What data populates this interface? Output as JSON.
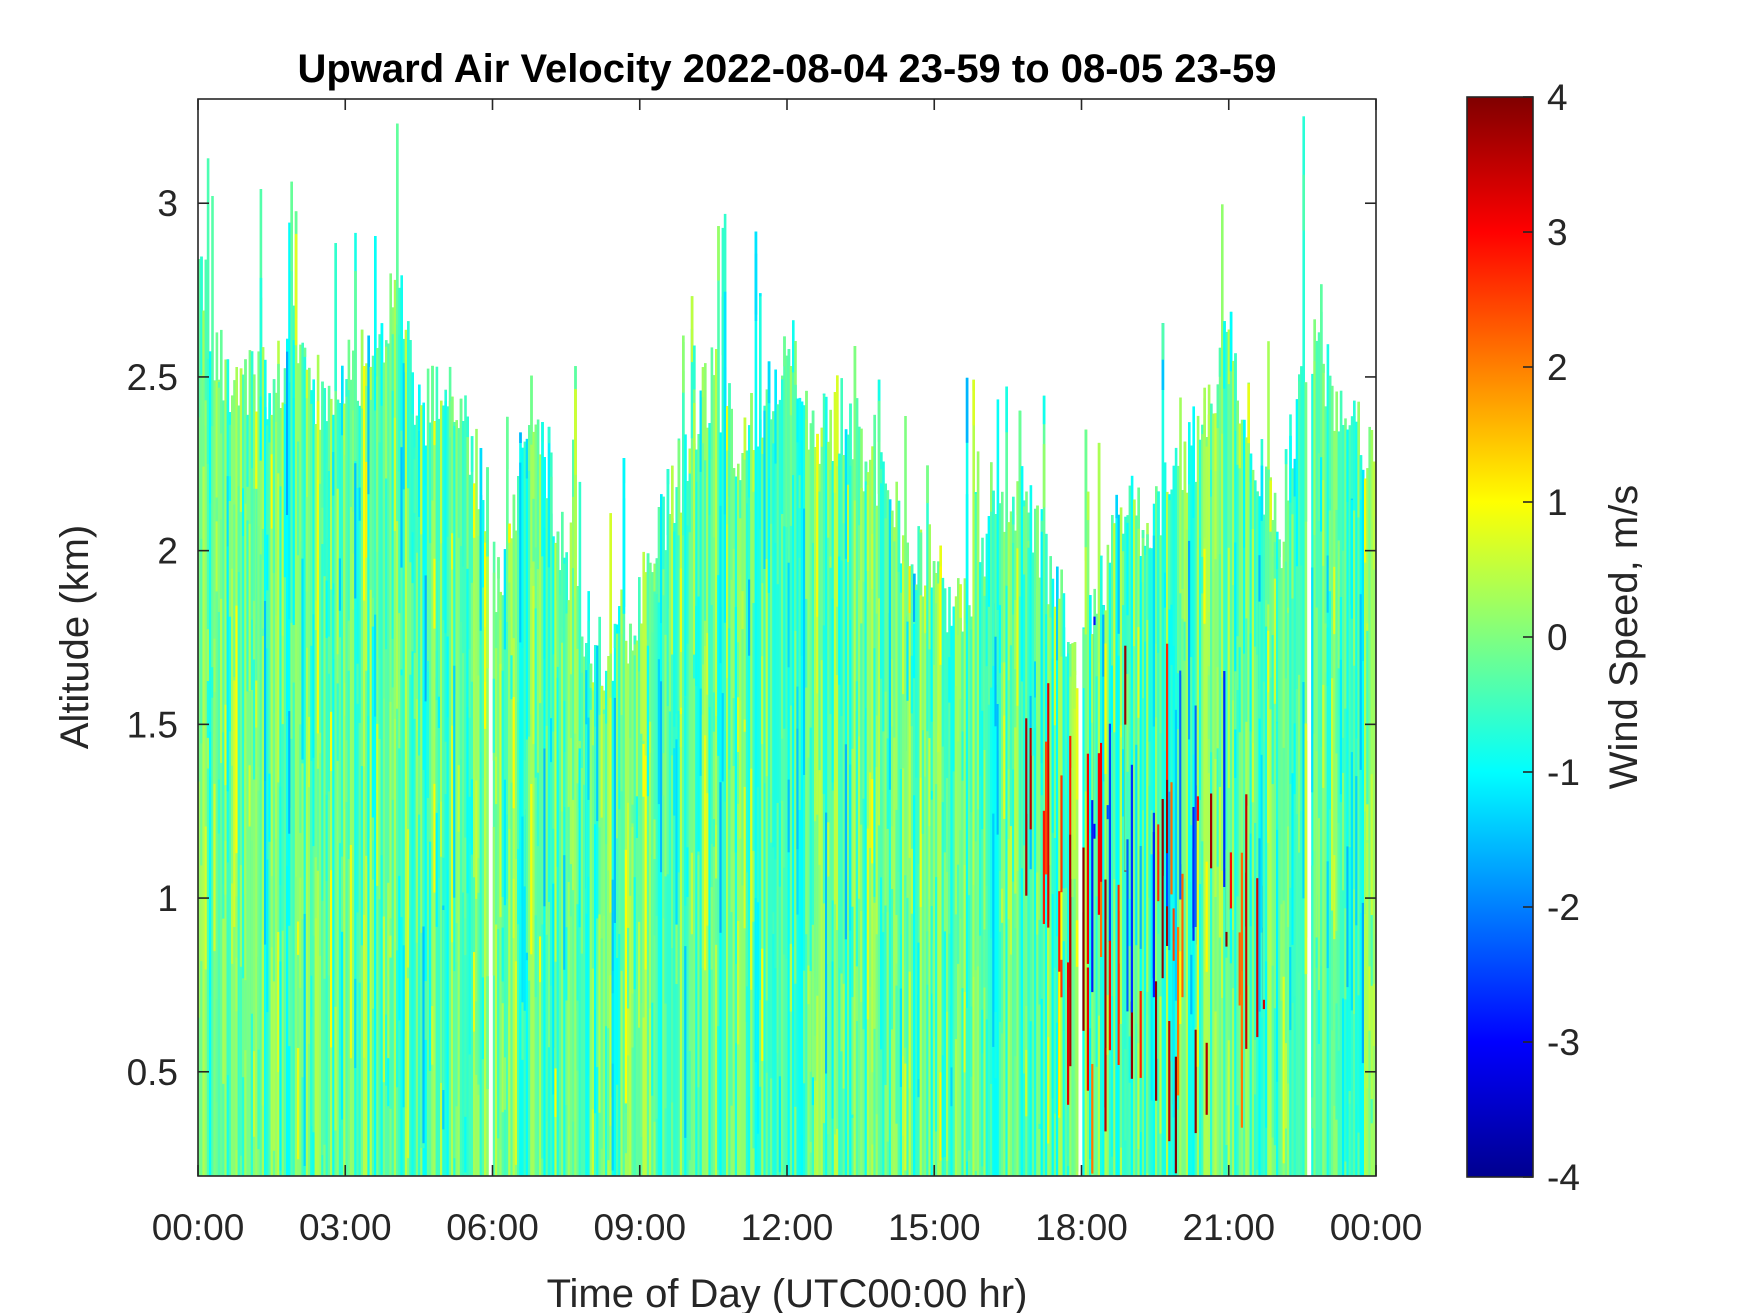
{
  "chart_data": {
    "type": "heatmap",
    "title": "Upward Air Velocity 2022-08-04 23-59 to 08-05 23-59",
    "xlabel": "Time of Day (UTC00:00 hr)",
    "ylabel": "Altitude (km)",
    "colorbar_label": "Wind Speed, m/s",
    "x_tick_labels": [
      "00:00",
      "03:00",
      "06:00",
      "09:00",
      "12:00",
      "15:00",
      "18:00",
      "21:00",
      "00:00"
    ],
    "x_tick_hours": [
      0,
      3,
      6,
      9,
      12,
      15,
      18,
      21,
      24
    ],
    "xlim_hours": [
      0,
      24
    ],
    "y_tick_labels": [
      "0.5",
      "1",
      "1.5",
      "2",
      "2.5",
      "3"
    ],
    "y_ticks": [
      0.5,
      1,
      1.5,
      2,
      2.5,
      3
    ],
    "ylim": [
      0.2,
      3.3
    ],
    "colorbar_ticks": [
      4,
      3,
      2,
      1,
      0,
      -1,
      -2,
      -3,
      -4
    ],
    "clim": [
      -4,
      4
    ],
    "colormap": "jet",
    "grid": false,
    "cloud_top_km": [
      [
        0.0,
        2.8
      ],
      [
        0.5,
        2.5
      ],
      [
        1.0,
        2.5
      ],
      [
        1.5,
        2.5
      ],
      [
        2.0,
        2.5
      ],
      [
        2.5,
        2.45
      ],
      [
        3.0,
        2.55
      ],
      [
        3.5,
        2.5
      ],
      [
        4.0,
        2.8
      ],
      [
        4.5,
        2.4
      ],
      [
        5.0,
        2.5
      ],
      [
        5.5,
        2.35
      ],
      [
        5.9,
        2.1
      ],
      [
        6.0,
        1.9
      ],
      [
        6.3,
        2.0
      ],
      [
        6.6,
        2.3
      ],
      [
        7.0,
        2.3
      ],
      [
        7.3,
        2.1
      ],
      [
        7.7,
        1.85
      ],
      [
        8.1,
        1.7
      ],
      [
        8.5,
        1.75
      ],
      [
        9.0,
        1.85
      ],
      [
        9.5,
        2.1
      ],
      [
        10.0,
        2.3
      ],
      [
        10.5,
        2.5
      ],
      [
        11.0,
        2.3
      ],
      [
        11.5,
        2.4
      ],
      [
        12.0,
        2.6
      ],
      [
        12.5,
        2.3
      ],
      [
        13.0,
        2.4
      ],
      [
        13.5,
        2.3
      ],
      [
        14.0,
        2.15
      ],
      [
        14.5,
        2.0
      ],
      [
        15.0,
        1.95
      ],
      [
        15.5,
        1.8
      ],
      [
        16.0,
        2.05
      ],
      [
        16.5,
        2.2
      ],
      [
        17.0,
        2.1
      ],
      [
        17.5,
        1.85
      ],
      [
        17.9,
        1.7
      ],
      [
        18.0,
        1.8
      ],
      [
        18.5,
        1.95
      ],
      [
        19.0,
        2.1
      ],
      [
        19.5,
        2.1
      ],
      [
        20.0,
        2.2
      ],
      [
        20.5,
        2.4
      ],
      [
        21.0,
        2.6
      ],
      [
        21.5,
        2.3
      ],
      [
        22.0,
        2.0
      ],
      [
        22.5,
        2.6
      ],
      [
        23.0,
        2.5
      ],
      [
        23.5,
        2.35
      ],
      [
        24.0,
        2.2
      ]
    ],
    "data_gaps_hours": [
      5.95,
      17.95,
      22.6
    ],
    "strong_updraft_region": {
      "hours": [
        16.8,
        22.0
      ],
      "altitude_km": [
        0.2,
        1.2
      ],
      "value_range": [
        2,
        4
      ]
    },
    "strong_downdraft_region": {
      "hours": [
        18.0,
        21.0
      ],
      "altitude_km": [
        0.5,
        1.2
      ],
      "value_range": [
        -3,
        -2
      ]
    },
    "typical_value_range": [
      -1,
      0.5
    ]
  }
}
